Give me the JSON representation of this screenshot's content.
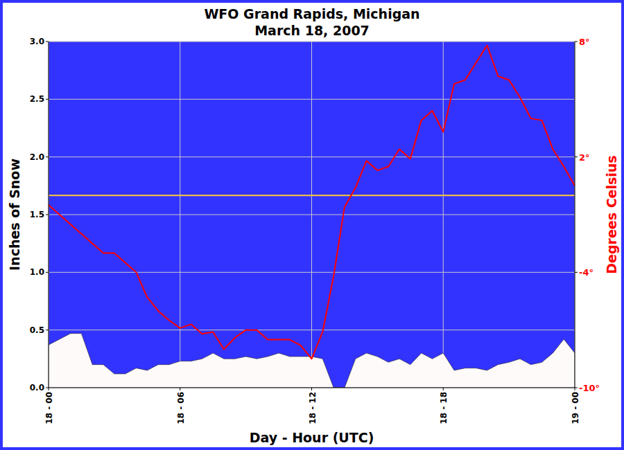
{
  "chart_data": {
    "type": "line",
    "title": "WFO Grand Rapids, Michigan",
    "subtitle": "March 18, 2007",
    "x_label": "Day - Hour (UTC)",
    "y_label": "Inches of Snow",
    "y2_label": "Degrees Celsius",
    "x": [
      0,
      0.5,
      1,
      1.5,
      2,
      2.5,
      3,
      3.5,
      4,
      4.5,
      5,
      5.5,
      6,
      6.5,
      7,
      7.5,
      8,
      8.5,
      9,
      9.5,
      10,
      10.5,
      11,
      11.5,
      12,
      12.5,
      13,
      13.5,
      14,
      14.5,
      15,
      15.5,
      16,
      16.5,
      17,
      17.5,
      18,
      18.5,
      19,
      19.5,
      20,
      20.5,
      21,
      21.5,
      22,
      22.5,
      23,
      23.5,
      24
    ],
    "xlim": [
      0,
      24
    ],
    "xticks": [
      {
        "value": 0,
        "label": "18 - 00"
      },
      {
        "value": 6,
        "label": "18 - 06"
      },
      {
        "value": 12,
        "label": "18 - 12"
      },
      {
        "value": 18,
        "label": "18 - 18"
      },
      {
        "value": 24,
        "label": "19 - 00"
      }
    ],
    "ylim": [
      0,
      3
    ],
    "yticks": [
      {
        "value": 0,
        "label": "0.0"
      },
      0.5,
      {
        "value": 1,
        "label": "1.0"
      },
      1.5,
      {
        "value": 2,
        "label": "2.0"
      },
      2.5,
      {
        "value": 3,
        "label": "3.0"
      }
    ],
    "y2lim": [
      -10,
      8
    ],
    "y2ticks": [
      {
        "value": -10,
        "label": "-10°"
      },
      {
        "value": -4,
        "label": "-4°"
      },
      {
        "value": 2,
        "label": "2°"
      },
      {
        "value": 8,
        "label": "8°"
      }
    ],
    "grid": true,
    "series": [
      {
        "type": "area",
        "color": "#fffafa",
        "values": [
          0.37,
          0.42,
          0.47,
          0.47,
          0.2,
          0.2,
          0.12,
          0.12,
          0.17,
          0.15,
          0.2,
          0.2,
          0.23,
          0.23,
          0.25,
          0.3,
          0.25,
          0.25,
          0.27,
          0.25,
          0.27,
          0.3,
          0.27,
          0.27,
          0.27,
          0.25,
          0,
          0,
          0.25,
          0.3,
          0.27,
          0.22,
          0.25,
          0.2,
          0.3,
          0.25,
          0.3,
          0.15,
          0.17,
          0.17,
          0.15,
          0.2,
          0.22,
          0.25,
          0.2,
          0.22,
          0.3,
          0.42,
          0.3
        ]
      },
      {
        "type": "line",
        "axis": "y2",
        "color": "#ffcc33",
        "values": [
          0,
          0,
          0,
          0,
          0,
          0,
          0,
          0,
          0,
          0,
          0,
          0,
          0,
          0,
          0,
          0,
          0,
          0,
          0,
          0,
          0,
          0,
          0,
          0,
          0,
          0,
          0,
          0,
          0,
          0,
          0,
          0,
          0,
          0,
          0,
          0,
          0,
          0,
          0,
          0,
          0,
          0,
          0,
          0,
          0,
          0,
          0,
          0,
          0
        ]
      },
      {
        "type": "line",
        "axis": "y2",
        "color": "#ff0000",
        "values": [
          -0.5,
          -1.0,
          -1.5,
          -2.0,
          -2.5,
          -3.0,
          -3.0,
          -3.5,
          -4.0,
          -5.3,
          -6.0,
          -6.5,
          -6.9,
          -6.7,
          -7.2,
          -7.1,
          -8.0,
          -7.4,
          -7.0,
          -7.0,
          -7.5,
          -7.5,
          -7.5,
          -7.8,
          -8.5,
          -7.1,
          -4.2,
          -0.6,
          0.4,
          1.8,
          1.3,
          1.5,
          2.4,
          1.9,
          3.9,
          4.4,
          3.3,
          5.8,
          6.0,
          6.9,
          7.8,
          6.2,
          6.0,
          5.1,
          4.0,
          3.9,
          2.4,
          1.5,
          0.5
        ]
      }
    ]
  }
}
